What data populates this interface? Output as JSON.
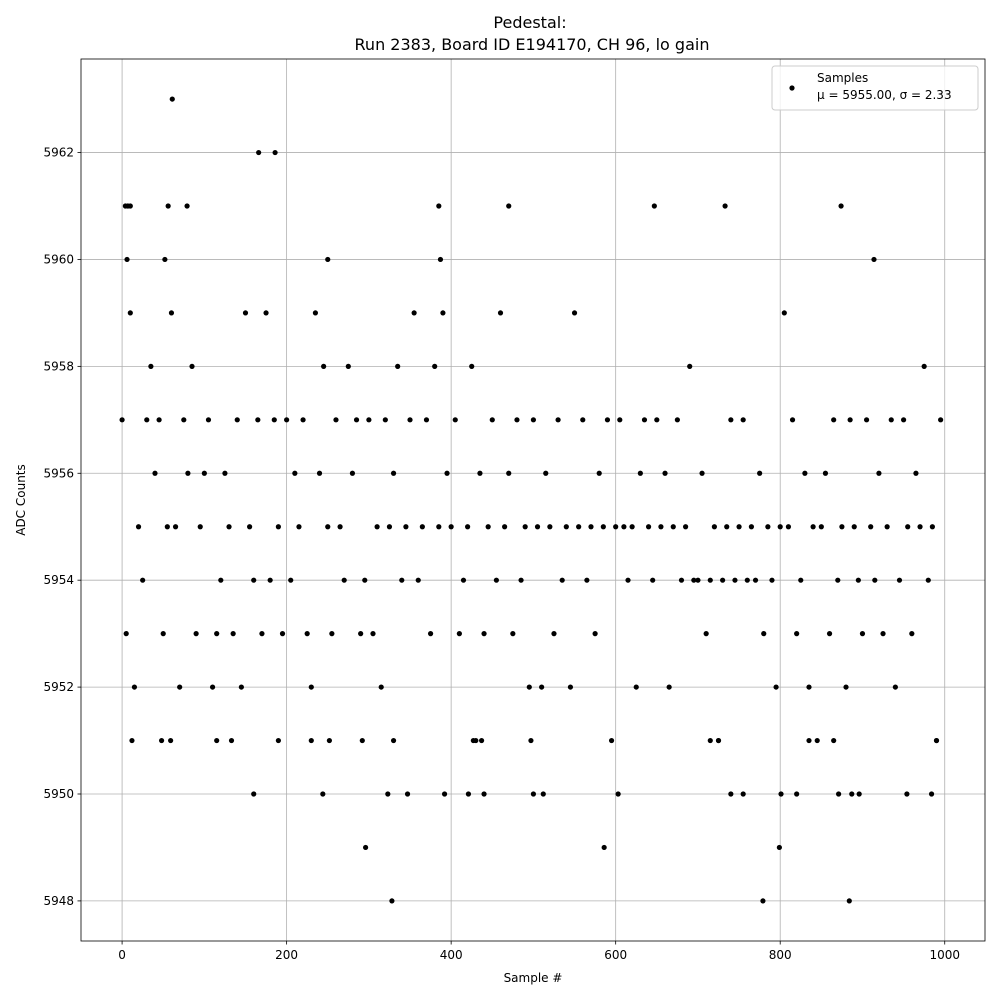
{
  "chart_data": {
    "type": "scatter",
    "title": [
      "Pedestal:",
      "Run 2383, Board ID E194170, CH 96, lo gain"
    ],
    "x_label": "Sample #",
    "y_label": "ADC Counts",
    "xlim": [
      -49.95,
      1048.95
    ],
    "ylim": [
      5947.25,
      5963.75
    ],
    "xticks": [
      0,
      200,
      400,
      600,
      800,
      1000
    ],
    "yticks": [
      5948,
      5950,
      5952,
      5954,
      5956,
      5958,
      5960,
      5962
    ],
    "grid": true,
    "legend": "upper right",
    "series": [
      {
        "name": "Samples",
        "label2": "μ = 5955.00, σ = 2.33",
        "color": "#000000",
        "x": [
          0,
          5,
          10,
          15,
          20,
          25,
          30,
          35,
          40,
          45,
          50,
          55,
          60,
          65,
          70,
          75,
          80,
          85,
          90,
          95,
          100,
          105,
          110,
          115,
          120,
          125,
          130,
          135,
          140,
          145,
          150,
          155,
          160,
          165,
          170,
          175,
          180,
          185,
          190,
          195,
          200,
          205,
          210,
          215,
          220,
          225,
          230,
          235,
          240,
          245,
          250,
          255,
          260,
          265,
          270,
          275,
          280,
          285,
          290,
          295,
          300,
          305,
          310,
          315,
          320,
          325,
          330,
          335,
          340,
          345,
          350,
          355,
          360,
          365,
          370,
          375,
          380,
          385,
          390,
          395,
          400,
          405,
          410,
          415,
          420,
          425,
          430,
          435,
          440,
          445,
          450,
          455,
          460,
          465,
          470,
          475,
          480,
          485,
          490,
          495,
          500,
          505,
          510,
          515,
          520,
          525,
          530,
          535,
          540,
          545,
          550,
          555,
          560,
          565,
          570,
          575,
          580,
          585,
          590,
          595,
          600,
          605,
          610,
          615,
          620,
          625,
          630,
          635,
          640,
          645,
          650,
          655,
          660,
          665,
          670,
          675,
          680,
          685,
          690,
          695,
          700,
          705,
          710,
          715,
          720,
          725,
          730,
          735,
          740,
          745,
          750,
          755,
          760,
          765,
          770,
          775,
          780,
          785,
          790,
          795,
          800,
          805,
          810,
          815,
          820,
          825,
          830,
          835,
          840,
          845,
          850,
          855,
          860,
          865,
          870,
          875,
          880,
          885,
          890,
          895,
          900,
          905,
          910,
          915,
          920,
          925,
          930,
          935,
          940,
          945,
          950,
          955,
          960,
          965,
          970,
          975,
          980,
          985,
          990,
          995,
          61,
          166,
          186,
          4,
          7,
          10,
          56,
          79,
          385,
          470,
          647,
          733,
          874,
          6,
          52,
          250,
          387,
          914,
          160,
          244,
          323,
          347,
          392,
          421,
          440,
          500,
          512,
          603,
          740,
          755,
          801,
          820,
          871,
          887,
          896,
          954,
          984,
          296,
          586,
          799,
          328,
          779,
          884,
          12,
          48,
          59,
          115,
          133,
          190,
          230,
          252,
          292,
          330,
          427,
          437,
          497,
          715,
          725,
          835,
          865,
          990
        ],
        "values": [
          5957,
          5953,
          5959,
          5952,
          5955,
          5954,
          5957,
          5958,
          5956,
          5957,
          5953,
          5955,
          5959,
          5955,
          5952,
          5957,
          5956,
          5958,
          5953,
          5955,
          5956,
          5957,
          5952,
          5953,
          5954,
          5956,
          5955,
          5953,
          5957,
          5952,
          5959,
          5955,
          5954,
          5957,
          5953,
          5959,
          5954,
          5957,
          5955,
          5953,
          5957,
          5954,
          5956,
          5955,
          5957,
          5953,
          5952,
          5959,
          5956,
          5958,
          5955,
          5953,
          5957,
          5955,
          5954,
          5958,
          5956,
          5957,
          5953,
          5954,
          5957,
          5953,
          5955,
          5952,
          5957,
          5955,
          5956,
          5958,
          5954,
          5955,
          5957,
          5959,
          5954,
          5955,
          5957,
          5953,
          5958,
          5955,
          5959,
          5956,
          5955,
          5957,
          5953,
          5954,
          5955,
          5958,
          5951,
          5956,
          5953,
          5955,
          5957,
          5954,
          5959,
          5955,
          5956,
          5953,
          5957,
          5954,
          5955,
          5952,
          5957,
          5955,
          5952,
          5956,
          5955,
          5953,
          5957,
          5954,
          5955,
          5952,
          5959,
          5955,
          5957,
          5954,
          5955,
          5953,
          5956,
          5955,
          5957,
          5951,
          5955,
          5957,
          5955,
          5954,
          5955,
          5952,
          5956,
          5957,
          5955,
          5954,
          5957,
          5955,
          5956,
          5952,
          5955,
          5957,
          5954,
          5955,
          5958,
          5954,
          5954,
          5956,
          5953,
          5954,
          5955,
          5951,
          5954,
          5955,
          5957,
          5954,
          5955,
          5957,
          5954,
          5955,
          5954,
          5956,
          5953,
          5955,
          5954,
          5952,
          5955,
          5959,
          5955,
          5957,
          5953,
          5954,
          5956,
          5952,
          5955,
          5951,
          5955,
          5956,
          5953,
          5957,
          5954,
          5955,
          5952,
          5957,
          5955,
          5954,
          5953,
          5957,
          5955,
          5954,
          5956,
          5953,
          5955,
          5957,
          5952,
          5954,
          5957,
          5955,
          5953,
          5956,
          5955,
          5958,
          5954,
          5955,
          5951,
          5957,
          5963,
          5962,
          5962,
          5961,
          5961,
          5961,
          5961,
          5961,
          5961,
          5961,
          5961,
          5961,
          5961,
          5960,
          5960,
          5960,
          5960,
          5960,
          5950,
          5950,
          5950,
          5950,
          5950,
          5950,
          5950,
          5950,
          5950,
          5950,
          5950,
          5950,
          5950,
          5950,
          5950,
          5950,
          5950,
          5950,
          5950,
          5949,
          5949,
          5949,
          5948,
          5948,
          5948,
          5951,
          5951,
          5951,
          5951,
          5951,
          5951,
          5951,
          5951,
          5951,
          5951,
          5951,
          5951,
          5951,
          5951,
          5951,
          5951,
          5951,
          5951
        ]
      }
    ]
  }
}
